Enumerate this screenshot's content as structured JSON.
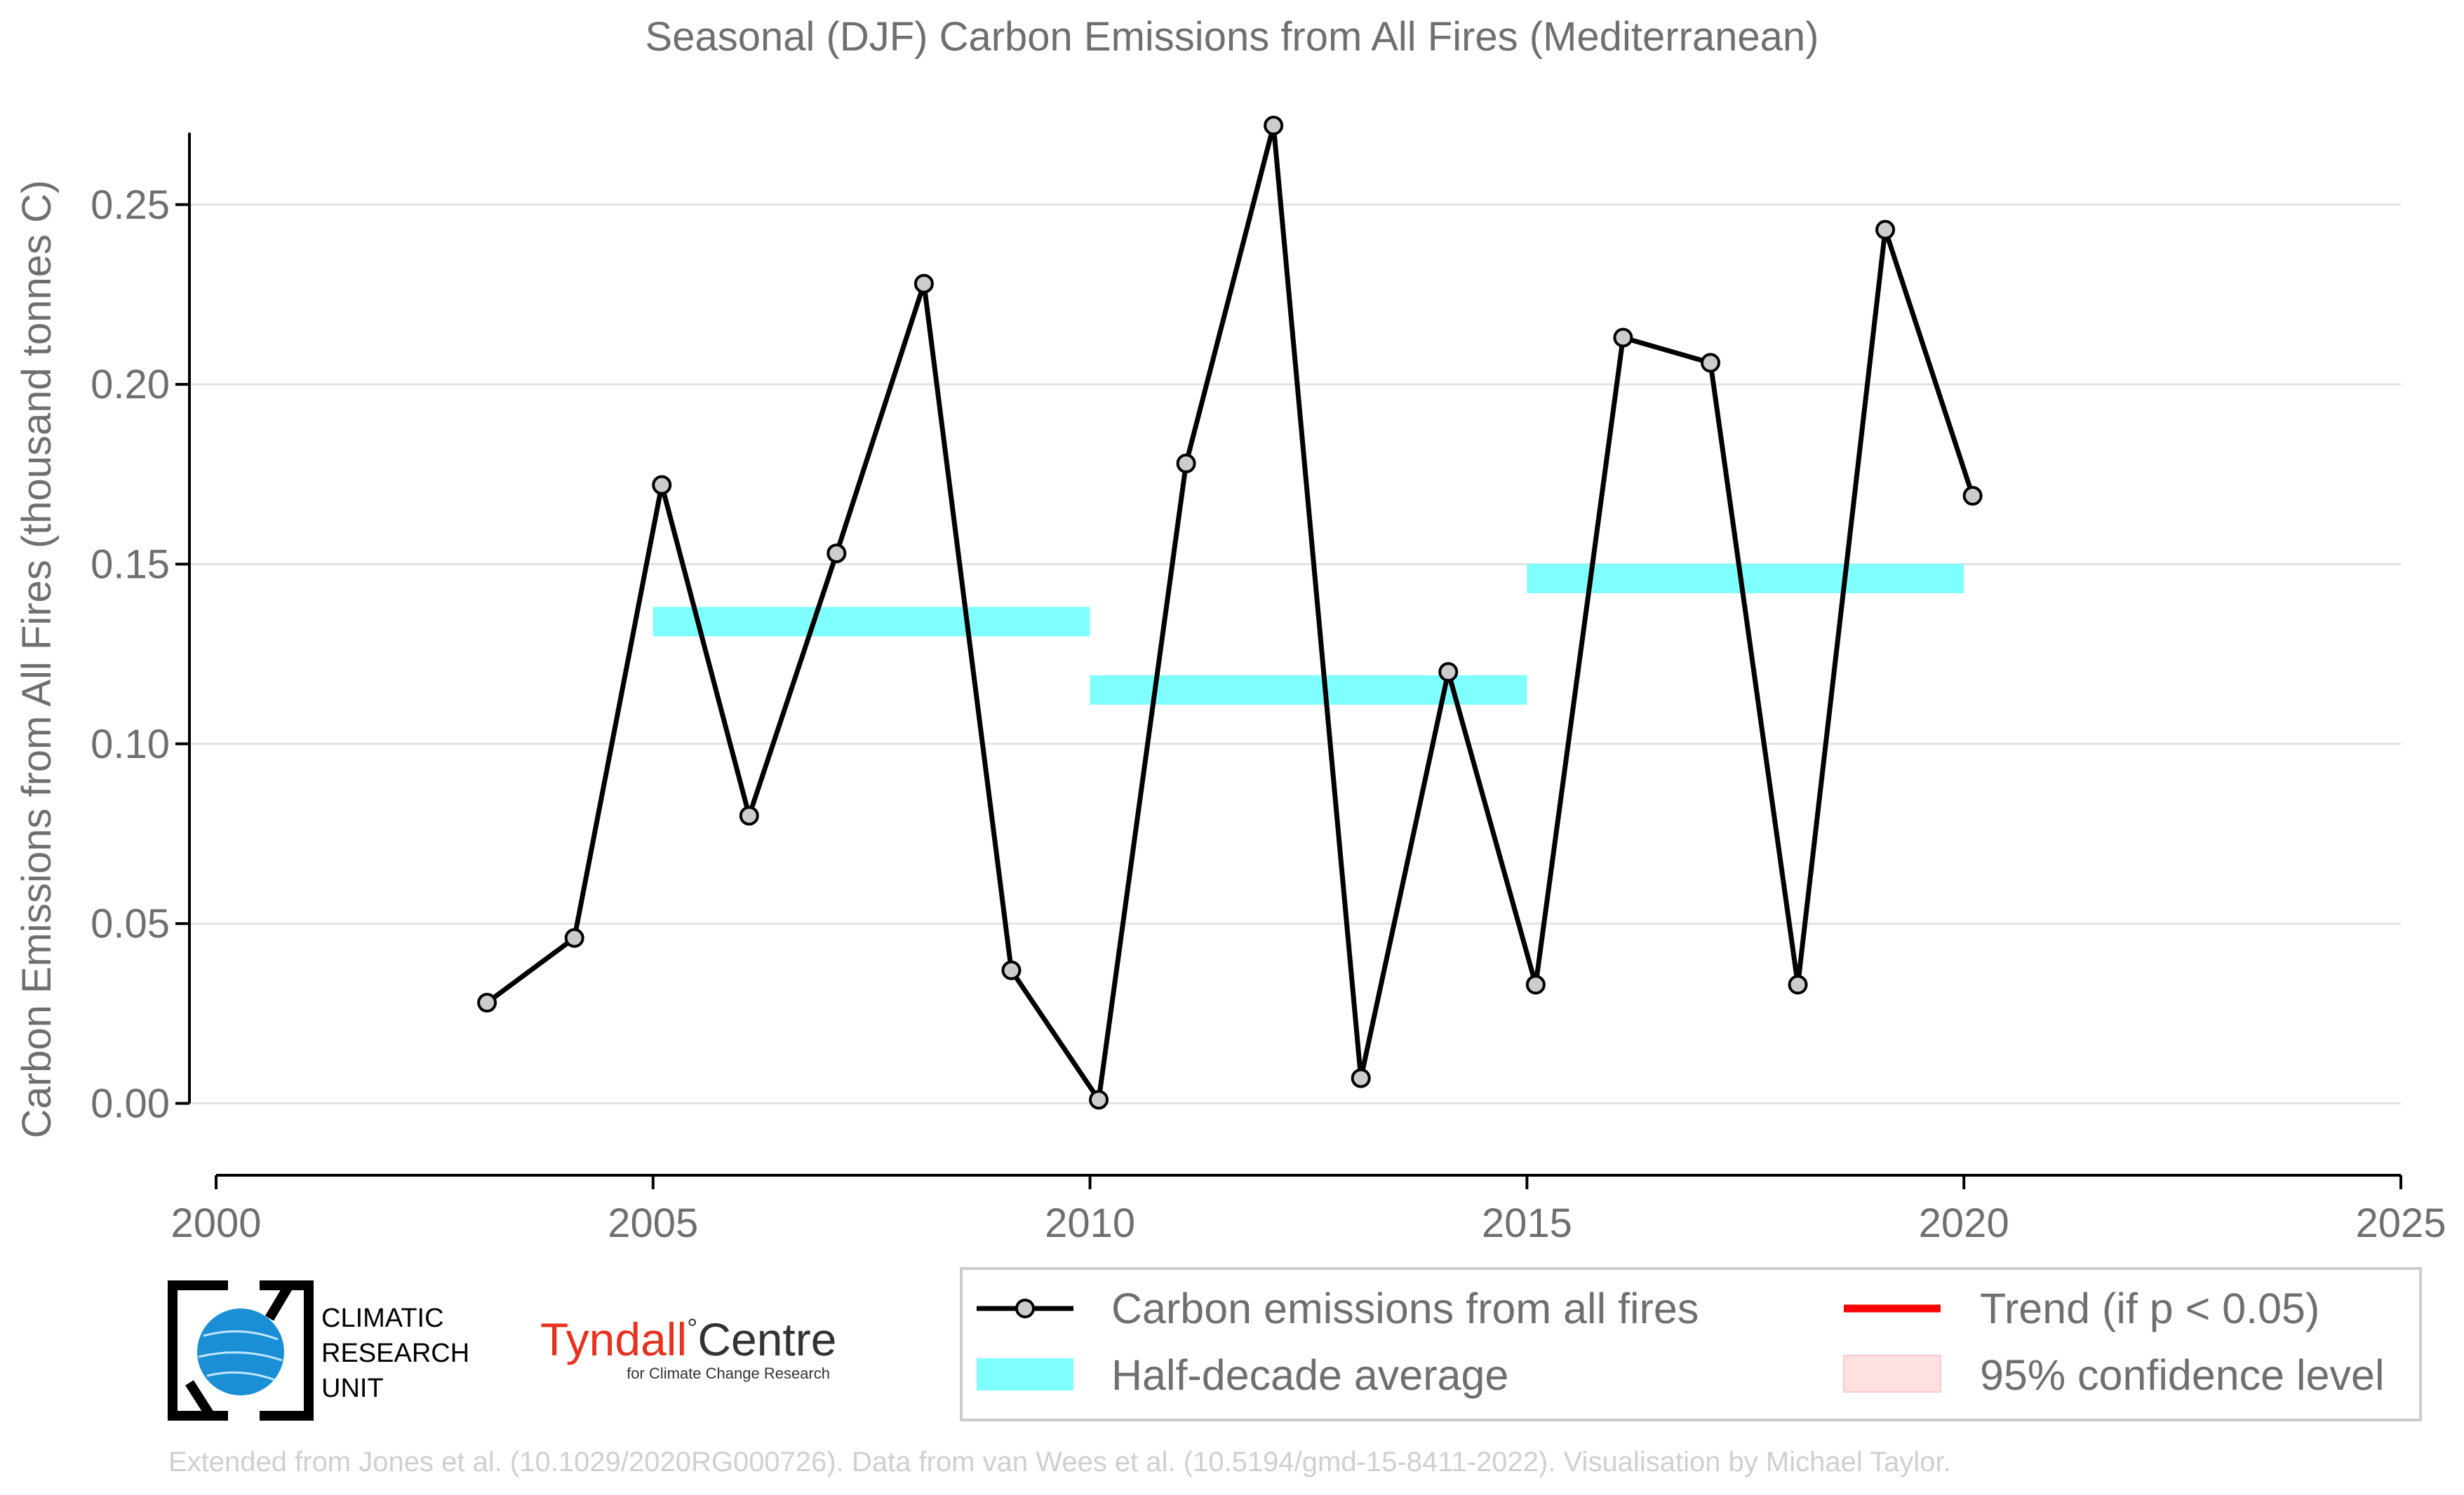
{
  "chart_data": {
    "type": "line",
    "title": "Seasonal (DJF) Carbon Emissions from All Fires (Mediterranean)",
    "xlabel": "",
    "ylabel": "Carbon Emissions from All Fires (thousand tonnes C)",
    "xlim": [
      2000,
      2025
    ],
    "ylim": [
      -0.02,
      0.28
    ],
    "xticks": [
      2000,
      2005,
      2010,
      2015,
      2020,
      2025
    ],
    "yticks": [
      0.0,
      0.05,
      0.1,
      0.15,
      0.2,
      0.25
    ],
    "ytick_labels": [
      "0.00",
      "0.05",
      "0.10",
      "0.15",
      "0.20",
      "0.25"
    ],
    "grid": "horizontal",
    "series": [
      {
        "name": "Carbon emissions from all fires",
        "color": "#000000",
        "marker_color": "#cccccc",
        "x": [
          2003.1,
          2004.1,
          2005.1,
          2006.1,
          2007.1,
          2008.1,
          2009.1,
          2010.1,
          2011.1,
          2012.1,
          2013.1,
          2014.1,
          2015.1,
          2016.1,
          2017.1,
          2018.1,
          2019.1,
          2020.1
        ],
        "y": [
          0.028,
          0.046,
          0.172,
          0.08,
          0.153,
          0.228,
          0.037,
          0.001,
          0.178,
          0.272,
          0.007,
          0.12,
          0.033,
          0.213,
          0.206,
          0.033,
          0.243,
          0.169
        ]
      }
    ],
    "half_decade_average": {
      "name": "Half-decade average",
      "color": "#80ffff",
      "segments": [
        {
          "x0": 2005,
          "x1": 2010,
          "y": 0.134
        },
        {
          "x0": 2010,
          "x1": 2015,
          "y": 0.115
        },
        {
          "x0": 2015,
          "x1": 2020,
          "y": 0.146
        }
      ]
    },
    "legend": {
      "placement": "bottom-right",
      "entries": [
        {
          "label": "Carbon emissions from all fires",
          "type": "line-marker",
          "color": "#000000"
        },
        {
          "label": "Trend (if p < 0.05)",
          "type": "line",
          "color": "#ff0000"
        },
        {
          "label": "Half-decade average",
          "type": "patch",
          "color": "#80ffff"
        },
        {
          "label": "95% confidence level",
          "type": "patch",
          "color": "#ffe0e3"
        }
      ]
    }
  },
  "logos": {
    "cru_line1": "CLIMATIC",
    "cru_line2": "RESEARCH",
    "cru_line3": "UNIT",
    "tyndall_name": "Tyndall",
    "tyndall_degree": "°",
    "tyndall_centre": "Centre",
    "tyndall_sub": "for Climate Change Research",
    "tyndall_color": "#e8321e",
    "cru_globe_color": "#1a8fd6"
  },
  "footer": "Extended from Jones et al. (10.1029/2020RG000726). Data from van Wees et al. (10.5194/gmd-15-8411-2022). Visualisation by Michael Taylor."
}
